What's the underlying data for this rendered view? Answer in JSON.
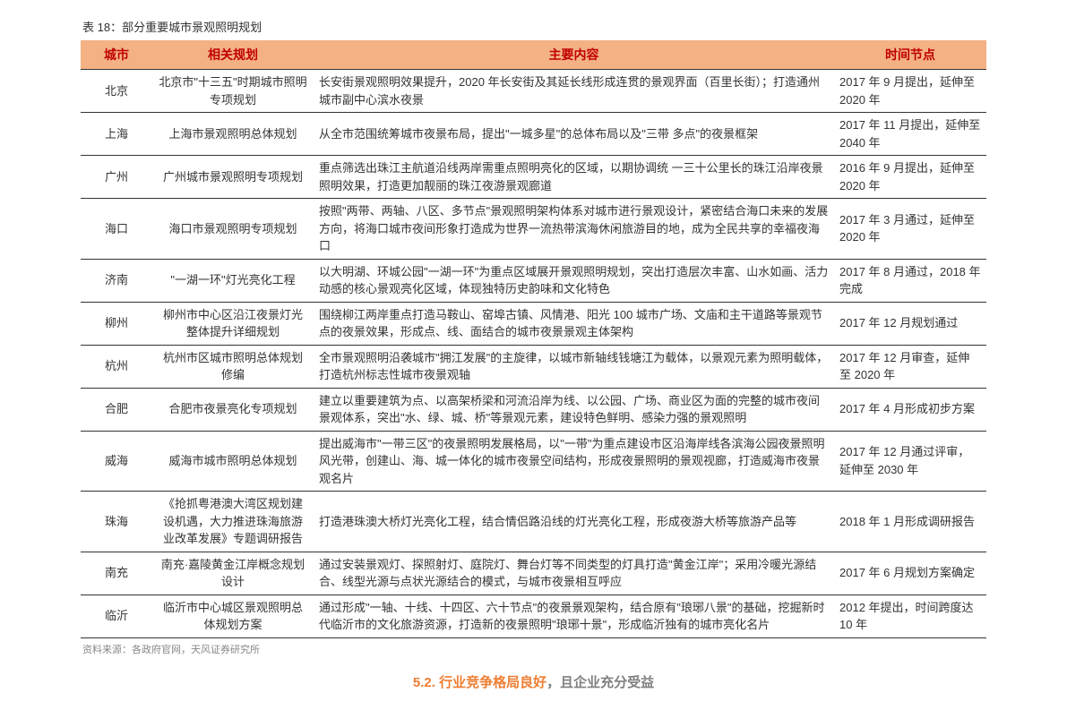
{
  "title": "表 18：部分重要城市景观照明规划",
  "columns": {
    "city": "城市",
    "plan": "相关规划",
    "content": "主要内容",
    "time": "时间节点"
  },
  "rows": [
    {
      "city": "北京",
      "plan": "北京市\"十三五\"时期城市照明专项规划",
      "content": "长安街景观照明效果提升，2020 年长安街及其延长线形成连贯的景观界面（百里长街）；打造通州城市副中心滨水夜景",
      "time": "2017 年 9 月提出，延伸至 2020 年"
    },
    {
      "city": "上海",
      "plan": "上海市景观照明总体规划",
      "content": "从全市范围统筹城市夜景布局，提出\"一城多星\"的总体布局以及\"三带  多点\"的夜景框架",
      "time": "2017 年 11 月提出，延伸至 2040 年"
    },
    {
      "city": "广州",
      "plan": "广州城市景观照明专项规划",
      "content": "重点筛选出珠江主航道沿线两岸需重点照明亮化的区域，以期协调统  一三十公里长的珠江沿岸夜景照明效果，打造更加靓丽的珠江夜游景观廊道",
      "time": "2016 年 9 月提出，延伸至 2020 年"
    },
    {
      "city": "海口",
      "plan": "海口市景观照明专项规划",
      "content": "按照\"两带、两轴、八区、多节点\"景观照明架构体系对城市进行景观设计，紧密结合海口未来的发展方向，将海口城市夜间形象打造成为世界一流热带滨海休闲旅游目的地，成为全民共享的幸福夜海口",
      "time": "2017 年 3 月通过，延伸至 2020 年"
    },
    {
      "city": "济南",
      "plan": "\"一湖一环\"灯光亮化工程",
      "content": "以大明湖、环城公园\"一湖一环\"为重点区域展开景观照明规划，突出打造层次丰富、山水如画、活力动感的核心景观亮化区域，体现独特历史韵味和文化特色",
      "time": "2017 年 8 月通过，2018 年完成"
    },
    {
      "city": "柳州",
      "plan": "柳州市中心区沿江夜景灯光整体提升详细规划",
      "content": "围绕柳江两岸重点打造马鞍山、窑埠古镇、风情港、阳光 100 城市广场、文庙和主干道路等景观节点的夜景效果，形成点、线、面结合的城市夜景景观主体架构",
      "time": "2017 年 12 月规划通过"
    },
    {
      "city": "杭州",
      "plan": "杭州市区城市照明总体规划修编",
      "content": "全市景观照明沿袭城市\"拥江发展\"的主旋律，以城市新轴线钱塘江为载体，以景观元素为照明载体，打造杭州标志性城市夜景观轴",
      "time": "2017 年 12 月审查，延伸至 2020 年"
    },
    {
      "city": "合肥",
      "plan": "合肥市夜景亮化专项规划",
      "content": "建立以重要建筑为点、以高架桥梁和河流沿岸为线、以公园、广场、商业区为面的完整的城市夜间景观体系，突出\"水、绿、城、桥\"等景观元素，建设特色鲜明、感染力强的景观照明",
      "time": "2017 年 4 月形成初步方案"
    },
    {
      "city": "威海",
      "plan": "威海市城市照明总体规划",
      "content": "提出威海市\"一带三区\"的夜景照明发展格局，以\"一带\"为重点建设市区沿海岸线各滨海公园夜景照明风光带，创建山、海、城一体化的城市夜景空间结构，形成夜景照明的景观视廊，打造威海市夜景观名片",
      "time": "2017 年 12 月通过评审，延伸至 2030 年"
    },
    {
      "city": "珠海",
      "plan": "《抢抓粤港澳大湾区规划建设机遇，大力推进珠海旅游业改革发展》专题调研报告",
      "content": "打造港珠澳大桥灯光亮化工程，结合情侣路沿线的灯光亮化工程，形成夜游大桥等旅游产品等",
      "time": "2018 年 1 月形成调研报告"
    },
    {
      "city": "南充",
      "plan": "南充·嘉陵黄金江岸概念规划设计",
      "content": "通过安装景观灯、探照射灯、庭院灯、舞台灯等不同类型的灯具打造\"黄金江岸\"；采用冷暖光源结合、线型光源与点状光源结合的模式，与城市夜景相互呼应",
      "time": "2017 年 6 月规划方案确定"
    },
    {
      "city": "临沂",
      "plan": "临沂市中心城区景观照明总体规划方案",
      "content": "通过形成\"一轴、十线、十四区、六十节点\"的夜景景观架构，结合原有\"琅琊八景\"的基础，挖掘新时代临沂市的文化旅游资源，打造新的夜景照明\"琅琊十景\"，形成临沂独有的城市亮化名片",
      "time": "2012 年提出，时间跨度达 10 年"
    }
  ],
  "source": "资料来源：各政府官网，天风证券研究所",
  "footer_partial": {
    "num": "5.2.",
    "text1": "行业竞争格局良好",
    "sep": "，",
    "text2": "且企业充分受益"
  }
}
